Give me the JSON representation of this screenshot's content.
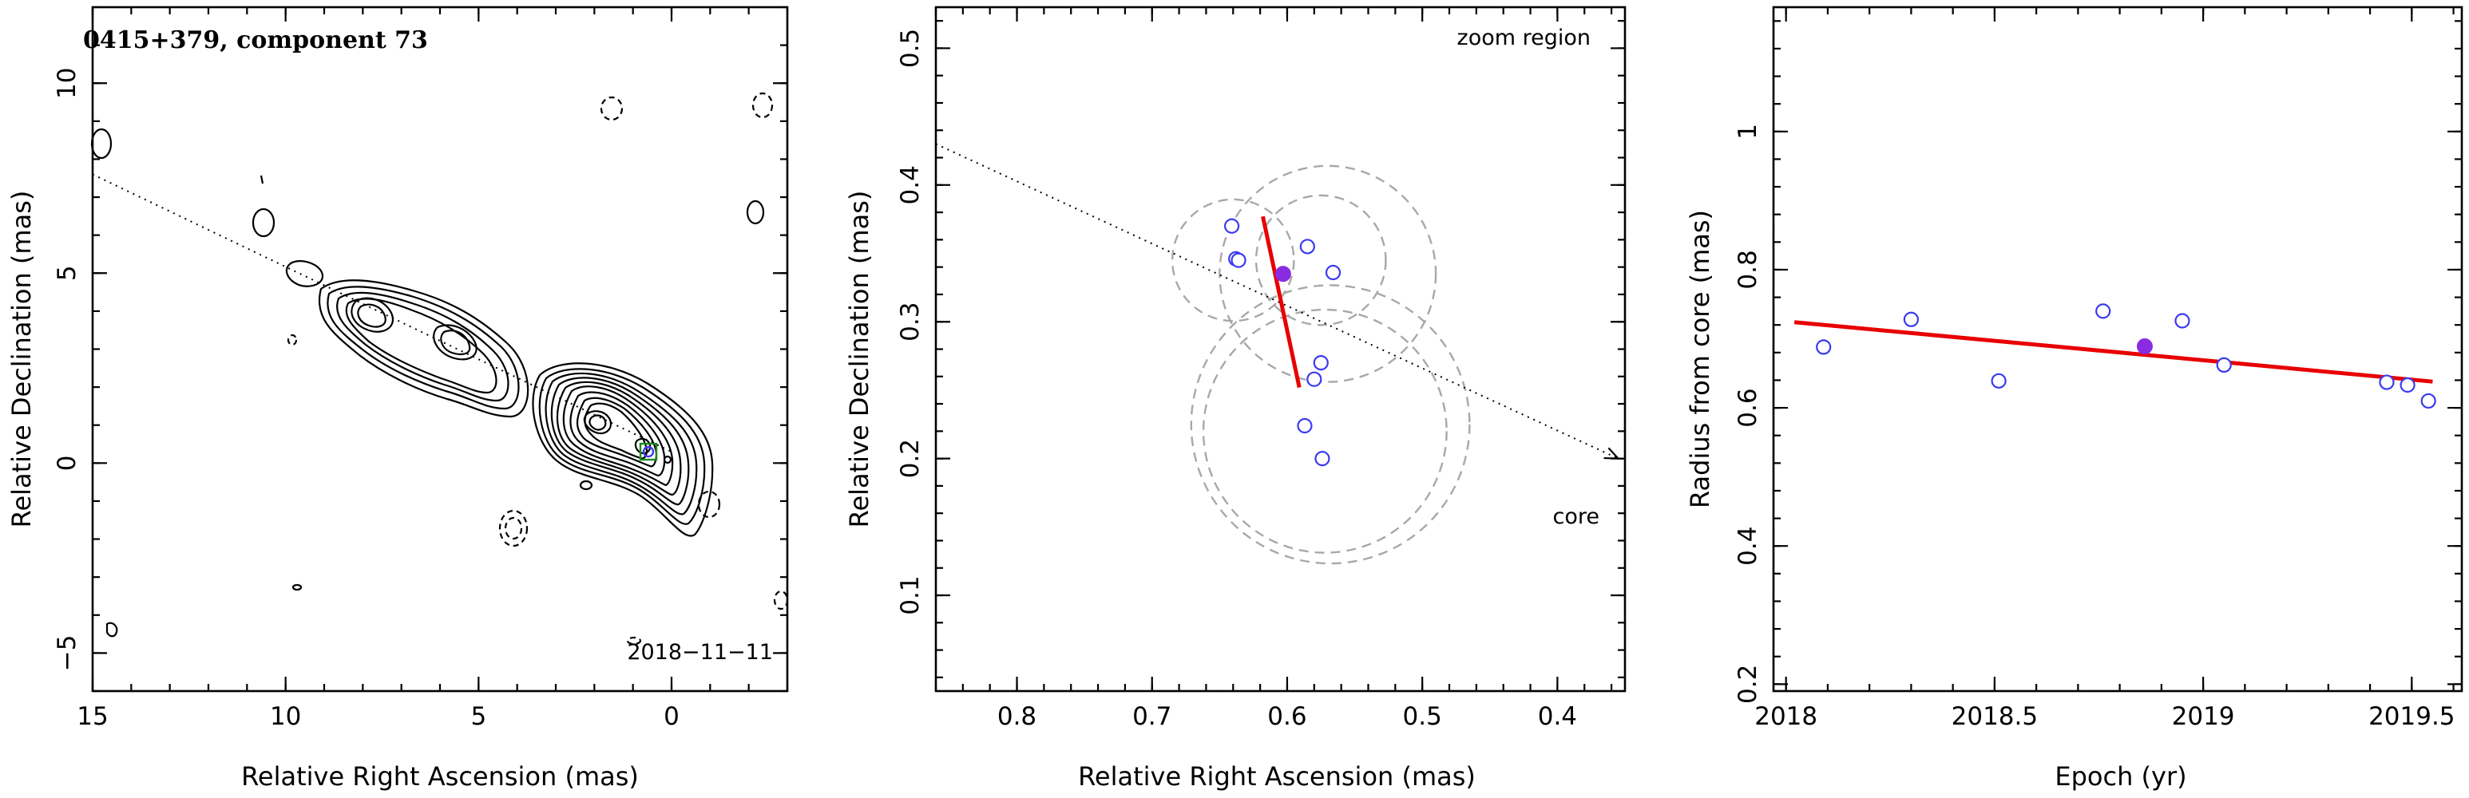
{
  "chart_data": [
    {
      "type": "contour",
      "title": "0415+379, component 73",
      "date_label": "2018−11−11",
      "xlabel": "Relative Right Ascension (mas)",
      "ylabel": "Relative Declination (mas)",
      "xlim": [
        15,
        -3
      ],
      "ylim": [
        -6,
        12
      ],
      "x_ticks": [
        15,
        10,
        5,
        0
      ],
      "y_ticks": [
        -5,
        0,
        5,
        10
      ],
      "x_tick_labels": [
        "15",
        "10",
        "5",
        "0"
      ],
      "y_tick_labels": [
        "−5",
        "0",
        "5",
        "10"
      ],
      "jet_direction_line": {
        "from": [
          15,
          7.6
        ],
        "to": [
          0,
          0.3
        ]
      },
      "component_marker": {
        "x": 0.6,
        "y": 0.3
      }
    },
    {
      "type": "scatter",
      "annotation": "zoom region",
      "core_label": "core",
      "xlabel": "Relative Right Ascension (mas)",
      "ylabel": "Relative Declination (mas)",
      "xlim": [
        0.86,
        0.35
      ],
      "ylim": [
        0.03,
        0.53
      ],
      "x_ticks": [
        0.8,
        0.7,
        0.6,
        0.5,
        0.4
      ],
      "y_ticks": [
        0.1,
        0.2,
        0.3,
        0.4,
        0.5
      ],
      "x_tick_labels": [
        "0.8",
        "0.7",
        "0.6",
        "0.5",
        "0.4"
      ],
      "y_tick_labels": [
        "0.1",
        "0.2",
        "0.3",
        "0.4",
        "0.5"
      ],
      "points": [
        {
          "x": 0.641,
          "y": 0.37
        },
        {
          "x": 0.638,
          "y": 0.346
        },
        {
          "x": 0.636,
          "y": 0.345
        },
        {
          "x": 0.585,
          "y": 0.355
        },
        {
          "x": 0.566,
          "y": 0.336
        },
        {
          "x": 0.575,
          "y": 0.27
        },
        {
          "x": 0.58,
          "y": 0.258
        },
        {
          "x": 0.587,
          "y": 0.224
        },
        {
          "x": 0.574,
          "y": 0.2
        }
      ],
      "current_point": {
        "x": 0.603,
        "y": 0.335
      },
      "error_circles": [
        {
          "x": 0.64,
          "y": 0.345,
          "r": 0.045
        },
        {
          "x": 0.575,
          "y": 0.345,
          "r": 0.048
        },
        {
          "x": 0.57,
          "y": 0.335,
          "r": 0.08
        },
        {
          "x": 0.572,
          "y": 0.22,
          "r": 0.09
        },
        {
          "x": 0.568,
          "y": 0.225,
          "r": 0.103
        }
      ],
      "fit_line": {
        "from": [
          0.618,
          0.377
        ],
        "to": [
          0.591,
          0.252
        ]
      },
      "jet_direction_line": {
        "from": [
          0.86,
          0.43
        ],
        "to": [
          0.355,
          0.2
        ]
      }
    },
    {
      "type": "scatter",
      "xlabel": "Epoch (yr)",
      "ylabel": "Radius from core (mas)",
      "xlim": [
        2017.97,
        2019.62
      ],
      "ylim": [
        0.19,
        1.18
      ],
      "x_ticks": [
        2018,
        2018.5,
        2019,
        2019.5
      ],
      "y_ticks": [
        0.2,
        0.4,
        0.6,
        0.8,
        1.0
      ],
      "x_tick_labels": [
        "2018",
        "2018.5",
        "2019",
        "2019.5"
      ],
      "y_tick_labels": [
        "0.2",
        "0.4",
        "0.6",
        "0.8",
        "1"
      ],
      "points": [
        {
          "x": 2018.09,
          "y": 0.688
        },
        {
          "x": 2018.3,
          "y": 0.728
        },
        {
          "x": 2018.51,
          "y": 0.639
        },
        {
          "x": 2018.76,
          "y": 0.74
        },
        {
          "x": 2018.95,
          "y": 0.726
        },
        {
          "x": 2019.05,
          "y": 0.662
        },
        {
          "x": 2019.44,
          "y": 0.637
        },
        {
          "x": 2019.49,
          "y": 0.633
        },
        {
          "x": 2019.54,
          "y": 0.61
        }
      ],
      "current_point": {
        "x": 2018.86,
        "y": 0.689
      },
      "fit_line": {
        "from": [
          2018.02,
          0.724
        ],
        "to": [
          2019.55,
          0.638
        ]
      }
    }
  ]
}
